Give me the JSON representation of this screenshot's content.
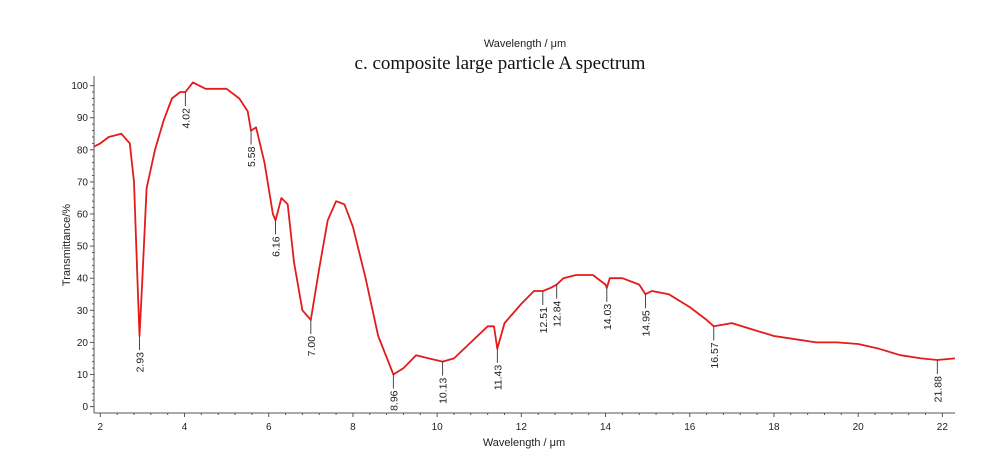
{
  "chart_data": {
    "type": "line",
    "top_label": "Wavelength / μm",
    "title": "c. composite large particle A spectrum",
    "xlabel": "Wavelength / μm",
    "ylabel": "Transmittance/%",
    "xlim": [
      1.85,
      22.3
    ],
    "ylim": [
      -2,
      103
    ],
    "grid": false,
    "x_ticks": [
      2,
      4,
      6,
      8,
      10,
      12,
      14,
      16,
      18,
      20,
      22
    ],
    "y_ticks": [
      0,
      10,
      20,
      30,
      40,
      50,
      60,
      70,
      80,
      90,
      100
    ],
    "series": [
      {
        "color": "#e31b1b",
        "x": [
          1.85,
          2.0,
          2.2,
          2.5,
          2.7,
          2.8,
          2.88,
          2.93,
          3.0,
          3.1,
          3.3,
          3.5,
          3.7,
          3.9,
          4.02,
          4.2,
          4.5,
          4.8,
          5.0,
          5.3,
          5.5,
          5.58,
          5.7,
          5.9,
          6.1,
          6.16,
          6.3,
          6.45,
          6.6,
          6.8,
          7.0,
          7.2,
          7.4,
          7.6,
          7.8,
          8.0,
          8.3,
          8.6,
          8.96,
          9.2,
          9.5,
          9.8,
          10.13,
          10.4,
          10.8,
          11.2,
          11.35,
          11.43,
          11.6,
          12.0,
          12.3,
          12.51,
          12.7,
          12.84,
          13.0,
          13.3,
          13.7,
          14.0,
          14.03,
          14.1,
          14.4,
          14.8,
          14.95,
          15.1,
          15.5,
          16.0,
          16.4,
          16.57,
          17.0,
          17.5,
          18.0,
          18.5,
          19.0,
          19.5,
          20.0,
          20.5,
          21.0,
          21.5,
          21.88,
          22.3
        ],
        "y": [
          81,
          82,
          84,
          85,
          82,
          70,
          40,
          22,
          40,
          68,
          80,
          89,
          96,
          98,
          98,
          101,
          99,
          99,
          99,
          96,
          92,
          86,
          87,
          76,
          60,
          58,
          65,
          63,
          45,
          30,
          27,
          43,
          58,
          64,
          63,
          56,
          40,
          22,
          10,
          12,
          16,
          15,
          14,
          15,
          20,
          25,
          25,
          18,
          26,
          32,
          36,
          36,
          37,
          38,
          40,
          41,
          41,
          38,
          37,
          40,
          40,
          38,
          35,
          36,
          35,
          31,
          27,
          25,
          26,
          24,
          22,
          21,
          20,
          20,
          19.5,
          18,
          16,
          15,
          14.5,
          15
        ]
      }
    ],
    "peak_labels": [
      {
        "text": "2.93",
        "x": 2.93,
        "y": 22,
        "dir": "down"
      },
      {
        "text": "4.02",
        "x": 4.02,
        "y": 98,
        "dir": "down"
      },
      {
        "text": "5.58",
        "x": 5.58,
        "y": 86,
        "dir": "down"
      },
      {
        "text": "6.16",
        "x": 6.16,
        "y": 58,
        "dir": "down"
      },
      {
        "text": "7.00",
        "x": 7.0,
        "y": 27,
        "dir": "down"
      },
      {
        "text": "8.96",
        "x": 8.96,
        "y": 10,
        "dir": "down"
      },
      {
        "text": "10.13",
        "x": 10.13,
        "y": 14,
        "dir": "down"
      },
      {
        "text": "11.43",
        "x": 11.43,
        "y": 18,
        "dir": "down"
      },
      {
        "text": "12.51",
        "x": 12.51,
        "y": 36,
        "dir": "down"
      },
      {
        "text": "12.84",
        "x": 12.84,
        "y": 38,
        "dir": "down"
      },
      {
        "text": "14.03",
        "x": 14.03,
        "y": 37,
        "dir": "down"
      },
      {
        "text": "14.95",
        "x": 14.95,
        "y": 35,
        "dir": "down"
      },
      {
        "text": "16.57",
        "x": 16.57,
        "y": 25,
        "dir": "down"
      },
      {
        "text": "21.88",
        "x": 21.88,
        "y": 14.5,
        "dir": "down"
      }
    ]
  }
}
